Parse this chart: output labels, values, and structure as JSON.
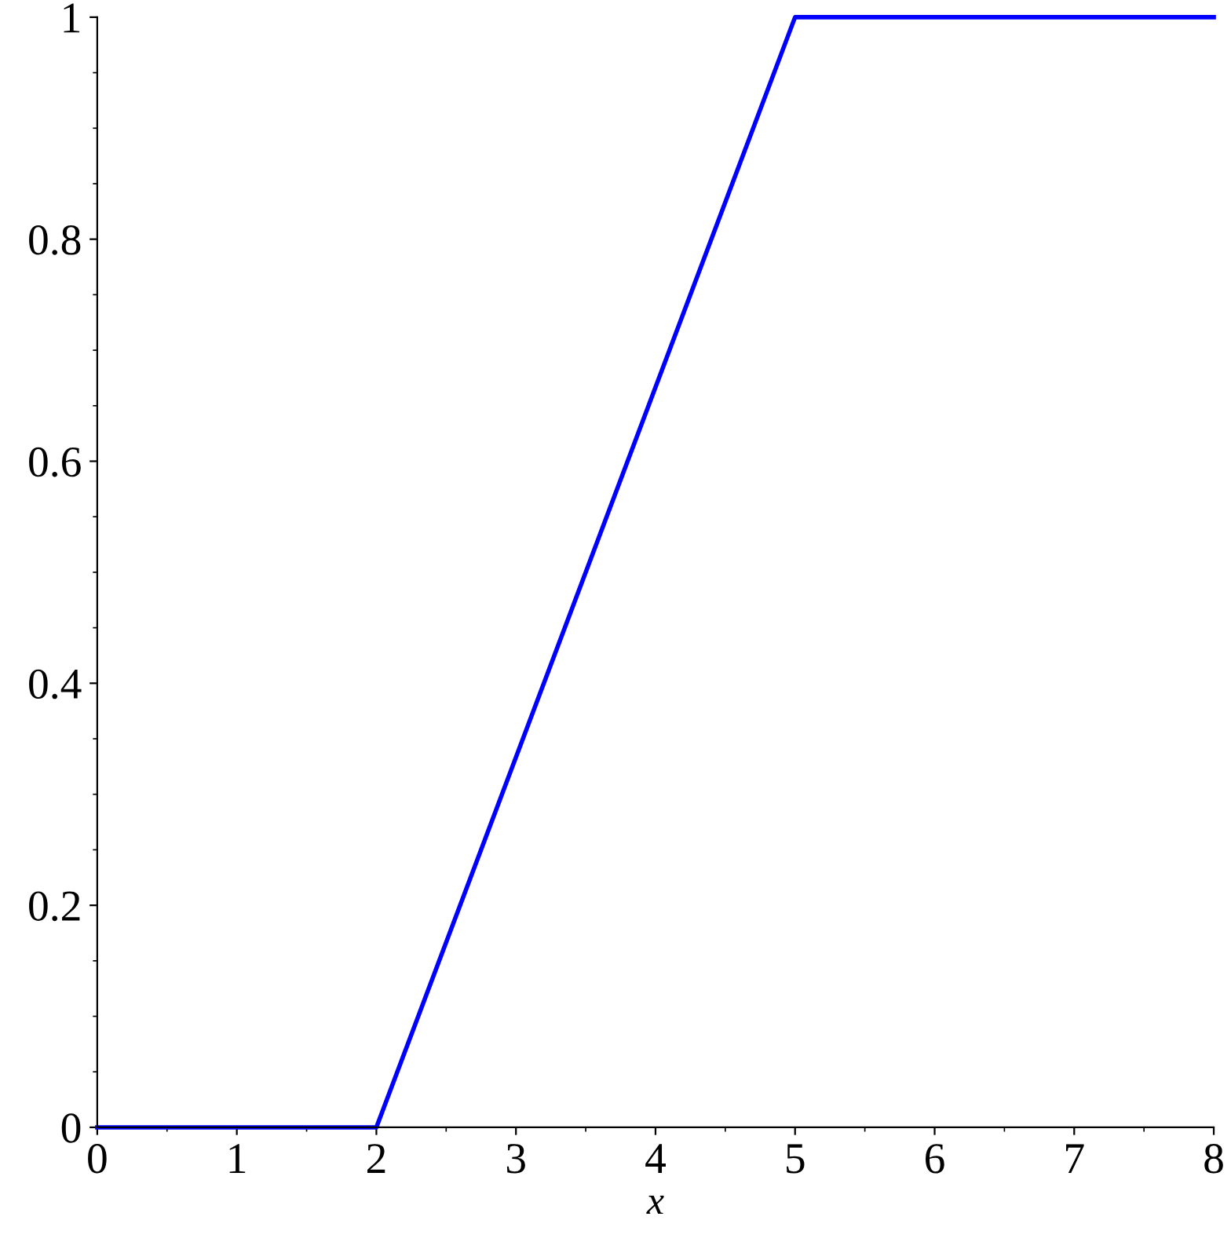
{
  "chart_data": {
    "type": "line",
    "xlabel": "x",
    "x": [
      0,
      2,
      5,
      8
    ],
    "series": [
      {
        "color": "#0000ff",
        "values": [
          0,
          0,
          1,
          1
        ]
      }
    ],
    "xlim": [
      0,
      8
    ],
    "xticks": [
      0,
      1,
      2,
      3,
      4,
      5,
      6,
      7,
      8
    ],
    "ylim": [
      0,
      1
    ],
    "yticks": [
      0,
      0.2,
      0.4,
      0.6,
      0.8,
      1
    ],
    "grid": false,
    "marker": "none",
    "line_style": "solid"
  }
}
